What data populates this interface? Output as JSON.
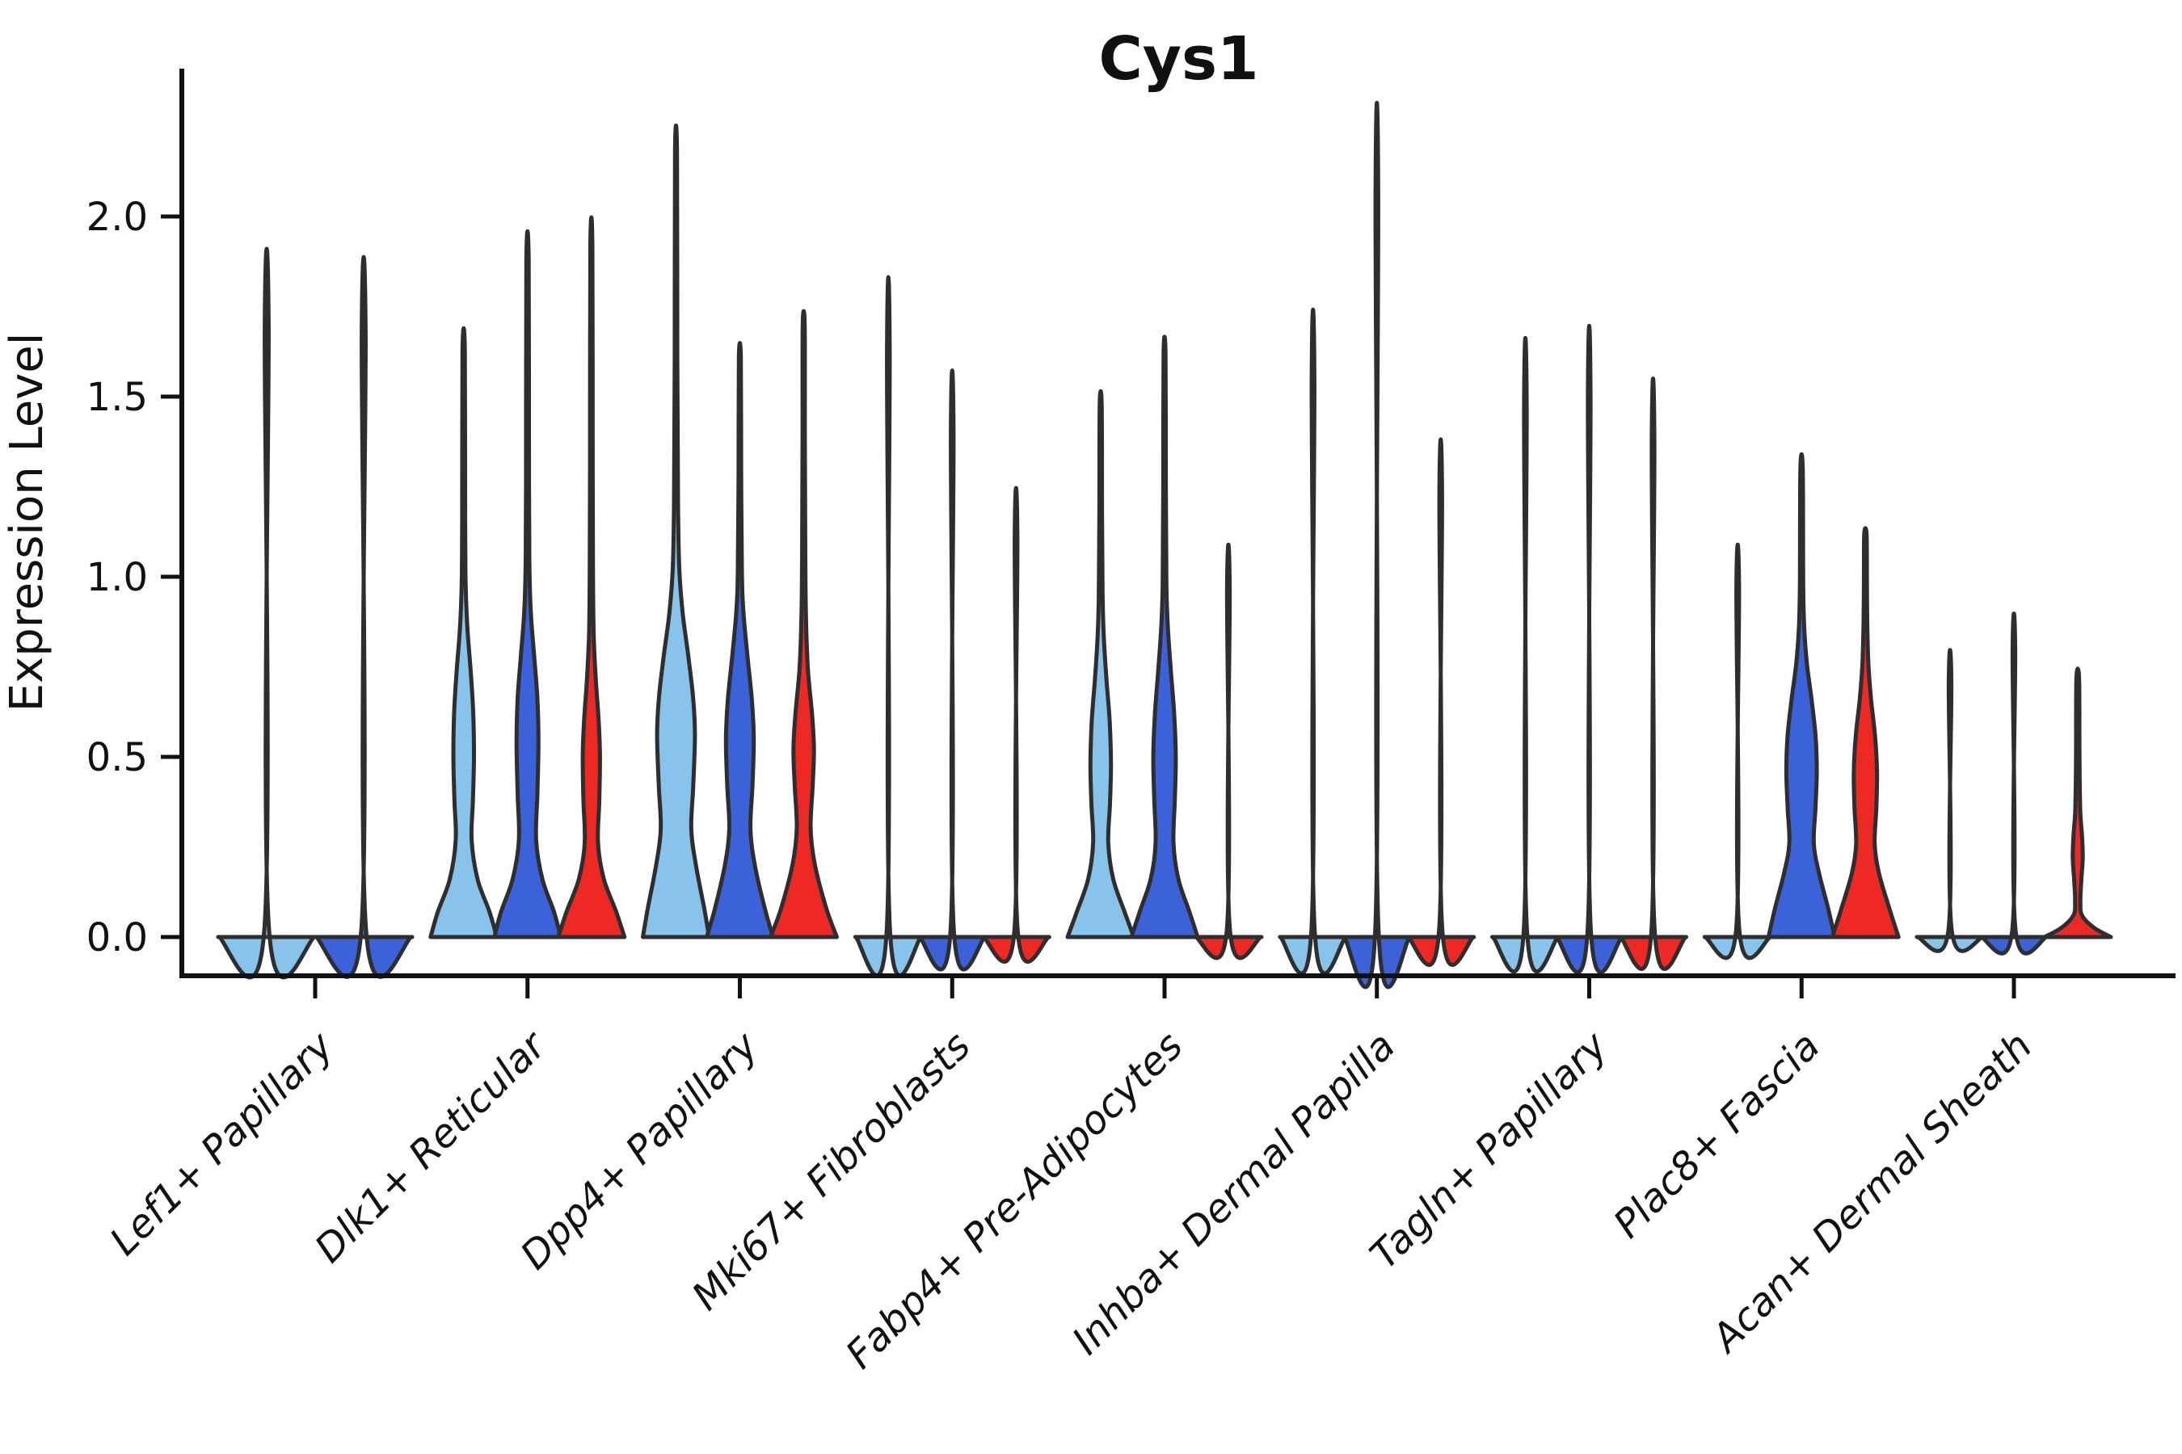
{
  "title": "Cys1",
  "y_axis": {
    "label": "Expression Level",
    "tick_labels": [
      "0.0",
      "0.5",
      "1.0",
      "1.5",
      "2.0"
    ]
  },
  "colors": {
    "series": [
      "#87C3EA",
      "#3B62D9",
      "#EE2823"
    ],
    "outline": "#2E2E2E",
    "axis": "#111111",
    "background": "#FFFFFF"
  },
  "chart_data": {
    "type": "violin",
    "title": "Cys1",
    "xlabel": "",
    "ylabel": "Expression Level",
    "ylim": [
      -0.11,
      2.41
    ],
    "yticks": [
      0,
      0.5,
      1,
      1.5,
      2
    ],
    "grid": false,
    "legend": "none",
    "categories": [
      "Lef1+ Papillary",
      "Dlk1+ Reticular",
      "Dpp4+ Papillary",
      "Mki67+ Fibroblasts",
      "Fabp4+ Pre-Adipocytes",
      "Inhba+ Dermal Papilla",
      "Tagln+ Papillary",
      "Plac8+ Fascia",
      "Acan+ Dermal Sheath"
    ],
    "series_colors": [
      "#87C3EA",
      "#3B62D9",
      "#EE2823"
    ],
    "groups": [
      {
        "label": "Lef1+ Papillary",
        "violins": [
          {
            "series": 0,
            "shape": "spike",
            "max": 1.7
          },
          {
            "series": 1,
            "shape": "spike",
            "max": 1.68
          }
        ]
      },
      {
        "label": "Dlk1+ Reticular",
        "violins": [
          {
            "series": 0,
            "shape": "body",
            "max": 1.63,
            "profile": [
              [
                0,
                1
              ],
              [
                0.07,
                0.78
              ],
              [
                0.16,
                0.42
              ],
              [
                0.27,
                0.24
              ],
              [
                0.38,
                0.28
              ],
              [
                0.5,
                0.31
              ],
              [
                0.62,
                0.29
              ],
              [
                0.74,
                0.21
              ],
              [
                0.86,
                0.11
              ],
              [
                0.98,
                0.06
              ],
              [
                1.15,
                0.045
              ],
              [
                1.63,
                0.035
              ]
            ]
          },
          {
            "series": 1,
            "shape": "body",
            "max": 1.88,
            "profile": [
              [
                0,
                1
              ],
              [
                0.07,
                0.8
              ],
              [
                0.16,
                0.45
              ],
              [
                0.27,
                0.26
              ],
              [
                0.4,
                0.3
              ],
              [
                0.54,
                0.33
              ],
              [
                0.66,
                0.3
              ],
              [
                0.78,
                0.2
              ],
              [
                0.9,
                0.1
              ],
              [
                1.02,
                0.06
              ],
              [
                1.25,
                0.045
              ],
              [
                1.88,
                0.035
              ]
            ]
          },
          {
            "series": 2,
            "shape": "body",
            "max": 1.92,
            "profile": [
              [
                0,
                1
              ],
              [
                0.07,
                0.75
              ],
              [
                0.16,
                0.38
              ],
              [
                0.26,
                0.2
              ],
              [
                0.38,
                0.24
              ],
              [
                0.5,
                0.26
              ],
              [
                0.6,
                0.22
              ],
              [
                0.72,
                0.13
              ],
              [
                0.84,
                0.07
              ],
              [
                1.0,
                0.05
              ],
              [
                1.3,
                0.04
              ],
              [
                1.92,
                0.03
              ]
            ]
          }
        ]
      },
      {
        "label": "Dpp4+ Papillary",
        "violins": [
          {
            "series": 0,
            "shape": "body",
            "max": 2.18,
            "profile": [
              [
                0,
                1
              ],
              [
                0.08,
                0.85
              ],
              [
                0.2,
                0.6
              ],
              [
                0.3,
                0.46
              ],
              [
                0.42,
                0.52
              ],
              [
                0.56,
                0.57
              ],
              [
                0.66,
                0.52
              ],
              [
                0.78,
                0.37
              ],
              [
                0.9,
                0.2
              ],
              [
                1.02,
                0.1
              ],
              [
                1.2,
                0.06
              ],
              [
                1.6,
                0.04
              ],
              [
                2.18,
                0.03
              ]
            ]
          },
          {
            "series": 1,
            "shape": "body",
            "max": 1.61,
            "profile": [
              [
                0,
                1
              ],
              [
                0.08,
                0.75
              ],
              [
                0.2,
                0.45
              ],
              [
                0.3,
                0.32
              ],
              [
                0.42,
                0.38
              ],
              [
                0.55,
                0.42
              ],
              [
                0.66,
                0.36
              ],
              [
                0.78,
                0.23
              ],
              [
                0.9,
                0.11
              ],
              [
                1.02,
                0.06
              ],
              [
                1.3,
                0.04
              ],
              [
                1.61,
                0.03
              ]
            ]
          },
          {
            "series": 2,
            "shape": "body",
            "max": 1.7,
            "profile": [
              [
                0,
                1
              ],
              [
                0.08,
                0.68
              ],
              [
                0.2,
                0.34
              ],
              [
                0.3,
                0.21
              ],
              [
                0.42,
                0.27
              ],
              [
                0.52,
                0.31
              ],
              [
                0.62,
                0.25
              ],
              [
                0.74,
                0.13
              ],
              [
                0.88,
                0.07
              ],
              [
                1.05,
                0.05
              ],
              [
                1.4,
                0.035
              ],
              [
                1.7,
                0.03
              ]
            ]
          }
        ]
      },
      {
        "label": "Mki67+ Fibroblasts",
        "violins": [
          {
            "series": 0,
            "shape": "spike",
            "max": 1.63
          },
          {
            "series": 1,
            "shape": "spike",
            "max": 1.4
          },
          {
            "series": 2,
            "shape": "spike",
            "max": 1.11
          }
        ]
      },
      {
        "label": "Fabp4+ Pre-Adipocytes",
        "violins": [
          {
            "series": 0,
            "shape": "body",
            "max": 1.48,
            "profile": [
              [
                0,
                1
              ],
              [
                0.07,
                0.72
              ],
              [
                0.16,
                0.38
              ],
              [
                0.26,
                0.23
              ],
              [
                0.37,
                0.28
              ],
              [
                0.48,
                0.31
              ],
              [
                0.6,
                0.27
              ],
              [
                0.72,
                0.17
              ],
              [
                0.84,
                0.09
              ],
              [
                0.96,
                0.055
              ],
              [
                1.2,
                0.04
              ],
              [
                1.48,
                0.03
              ]
            ]
          },
          {
            "series": 1,
            "shape": "body",
            "max": 1.62,
            "profile": [
              [
                0,
                1
              ],
              [
                0.07,
                0.75
              ],
              [
                0.16,
                0.42
              ],
              [
                0.26,
                0.27
              ],
              [
                0.38,
                0.31
              ],
              [
                0.5,
                0.34
              ],
              [
                0.62,
                0.29
              ],
              [
                0.74,
                0.19
              ],
              [
                0.86,
                0.1
              ],
              [
                0.98,
                0.055
              ],
              [
                1.25,
                0.04
              ],
              [
                1.62,
                0.03
              ]
            ]
          },
          {
            "series": 2,
            "shape": "spike",
            "max": 0.97
          }
        ]
      },
      {
        "label": "Inhba+ Dermal Papilla",
        "violins": [
          {
            "series": 0,
            "shape": "spike",
            "max": 1.55
          },
          {
            "series": 1,
            "shape": "spike",
            "max": 2.06
          },
          {
            "series": 2,
            "shape": "spike",
            "max": 1.23
          }
        ]
      },
      {
        "label": "Tagln+ Papillary",
        "violins": [
          {
            "series": 0,
            "shape": "spike",
            "max": 1.48
          },
          {
            "series": 1,
            "shape": "spike",
            "max": 1.51
          },
          {
            "series": 2,
            "shape": "spike",
            "max": 1.38
          }
        ]
      },
      {
        "label": "Plac8+ Fascia",
        "violins": [
          {
            "series": 0,
            "shape": "spike",
            "max": 0.97
          },
          {
            "series": 1,
            "shape": "body",
            "max": 1.3,
            "profile": [
              [
                0,
                1
              ],
              [
                0.08,
                0.8
              ],
              [
                0.18,
                0.52
              ],
              [
                0.26,
                0.37
              ],
              [
                0.36,
                0.42
              ],
              [
                0.46,
                0.46
              ],
              [
                0.56,
                0.42
              ],
              [
                0.66,
                0.3
              ],
              [
                0.76,
                0.16
              ],
              [
                0.86,
                0.08
              ],
              [
                0.98,
                0.05
              ],
              [
                1.3,
                0.035
              ]
            ]
          },
          {
            "series": 2,
            "shape": "body",
            "max": 1.12,
            "profile": [
              [
                0,
                1
              ],
              [
                0.08,
                0.72
              ],
              [
                0.18,
                0.4
              ],
              [
                0.26,
                0.28
              ],
              [
                0.36,
                0.33
              ],
              [
                0.46,
                0.35
              ],
              [
                0.56,
                0.29
              ],
              [
                0.66,
                0.17
              ],
              [
                0.76,
                0.09
              ],
              [
                0.88,
                0.055
              ],
              [
                1.0,
                0.045
              ],
              [
                1.12,
                0.035
              ]
            ]
          }
        ]
      },
      {
        "label": "Acan+ Dermal Sheath",
        "violins": [
          {
            "series": 0,
            "shape": "spike",
            "max": 0.71
          },
          {
            "series": 1,
            "shape": "spike",
            "max": 0.8
          },
          {
            "series": 2,
            "shape": "body",
            "max": 0.72,
            "profile": [
              [
                0,
                1
              ],
              [
                0.025,
                0.5
              ],
              [
                0.06,
                0.13
              ],
              [
                0.1,
                0.08
              ],
              [
                0.16,
                0.11
              ],
              [
                0.22,
                0.15
              ],
              [
                0.28,
                0.13
              ],
              [
                0.34,
                0.08
              ],
              [
                0.42,
                0.06
              ],
              [
                0.52,
                0.05
              ],
              [
                0.72,
                0.04
              ]
            ]
          }
        ]
      }
    ]
  }
}
